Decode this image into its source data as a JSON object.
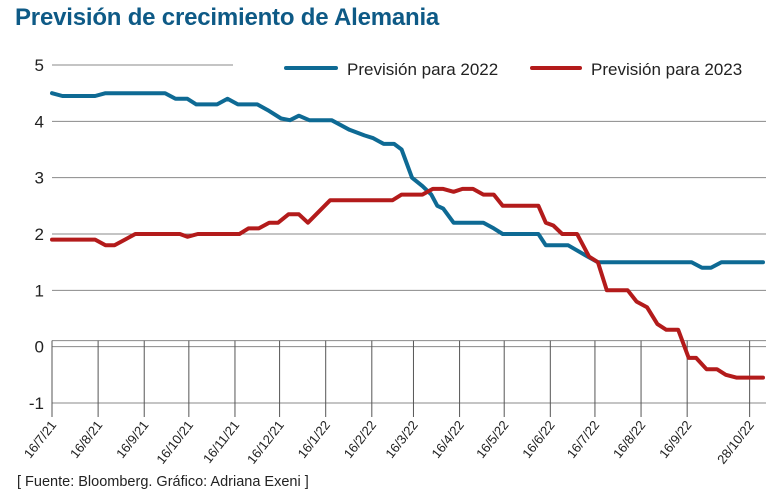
{
  "chart_data": {
    "type": "line",
    "title": "Previsión de crecimiento de Alemania",
    "xlabel": "",
    "ylabel": "",
    "ylim": [
      -1,
      5
    ],
    "yticks": [
      5,
      4,
      3,
      2,
      1,
      0,
      -1
    ],
    "grid": true,
    "legend_position": "top-right",
    "x_unit": "days since 16/7/21",
    "x_range": [
      0,
      480
    ],
    "xticks": [
      {
        "day": 0,
        "label": "16/7/21"
      },
      {
        "day": 31,
        "label": "16/8/21"
      },
      {
        "day": 62,
        "label": "16/9/21"
      },
      {
        "day": 92,
        "label": "16/10/21"
      },
      {
        "day": 123,
        "label": "16/11/21"
      },
      {
        "day": 153,
        "label": "16/12/21"
      },
      {
        "day": 184,
        "label": "16/1/22"
      },
      {
        "day": 215,
        "label": "16/2/22"
      },
      {
        "day": 243,
        "label": "16/3/22"
      },
      {
        "day": 274,
        "label": "16/4/22"
      },
      {
        "day": 304,
        "label": "16/5/22"
      },
      {
        "day": 335,
        "label": "16/6/22"
      },
      {
        "day": 365,
        "label": "16/7/22"
      },
      {
        "day": 396,
        "label": "16/8/22"
      },
      {
        "day": 427,
        "label": "16/9/22"
      },
      {
        "day": 469,
        "label": "28/10/22"
      }
    ],
    "series": [
      {
        "name": "Previsión para 2022",
        "color": "#0e6a94",
        "points": [
          [
            0,
            4.5
          ],
          [
            7,
            4.45
          ],
          [
            29,
            4.45
          ],
          [
            36,
            4.5
          ],
          [
            76,
            4.5
          ],
          [
            83,
            4.4
          ],
          [
            91,
            4.4
          ],
          [
            97,
            4.3
          ],
          [
            111,
            4.3
          ],
          [
            118,
            4.4
          ],
          [
            125,
            4.3
          ],
          [
            138,
            4.3
          ],
          [
            145,
            4.2
          ],
          [
            154,
            4.05
          ],
          [
            160,
            4.02
          ],
          [
            166,
            4.1
          ],
          [
            173,
            4.02
          ],
          [
            188,
            4.02
          ],
          [
            200,
            3.85
          ],
          [
            210,
            3.75
          ],
          [
            216,
            3.7
          ],
          [
            223,
            3.6
          ],
          [
            230,
            3.6
          ],
          [
            235,
            3.5
          ],
          [
            242,
            3.0
          ],
          [
            249,
            2.85
          ],
          [
            255,
            2.7
          ],
          [
            259,
            2.5
          ],
          [
            263,
            2.45
          ],
          [
            270,
            2.2
          ],
          [
            290,
            2.2
          ],
          [
            297,
            2.1
          ],
          [
            303,
            2.0
          ],
          [
            327,
            2.0
          ],
          [
            332,
            1.8
          ],
          [
            347,
            1.8
          ],
          [
            360,
            1.6
          ],
          [
            367,
            1.5
          ],
          [
            430,
            1.5
          ],
          [
            437,
            1.4
          ],
          [
            443,
            1.4
          ],
          [
            450,
            1.5
          ],
          [
            478,
            1.5
          ]
        ]
      },
      {
        "name": "Previsión para 2023",
        "color": "#b31b1b",
        "points": [
          [
            0,
            1.9
          ],
          [
            29,
            1.9
          ],
          [
            36,
            1.8
          ],
          [
            42,
            1.8
          ],
          [
            56,
            2.0
          ],
          [
            86,
            2.0
          ],
          [
            91,
            1.95
          ],
          [
            98,
            2.0
          ],
          [
            126,
            2.0
          ],
          [
            132,
            2.1
          ],
          [
            139,
            2.1
          ],
          [
            146,
            2.2
          ],
          [
            152,
            2.2
          ],
          [
            159,
            2.35
          ],
          [
            166,
            2.35
          ],
          [
            172,
            2.2
          ],
          [
            187,
            2.6
          ],
          [
            229,
            2.6
          ],
          [
            235,
            2.7
          ],
          [
            249,
            2.7
          ],
          [
            256,
            2.8
          ],
          [
            263,
            2.8
          ],
          [
            270,
            2.75
          ],
          [
            276,
            2.8
          ],
          [
            283,
            2.8
          ],
          [
            290,
            2.7
          ],
          [
            297,
            2.7
          ],
          [
            303,
            2.5
          ],
          [
            327,
            2.5
          ],
          [
            332,
            2.2
          ],
          [
            337,
            2.15
          ],
          [
            343,
            2.0
          ],
          [
            353,
            2.0
          ],
          [
            361,
            1.6
          ],
          [
            367,
            1.5
          ],
          [
            373,
            1.0
          ],
          [
            387,
            1.0
          ],
          [
            393,
            0.8
          ],
          [
            400,
            0.7
          ],
          [
            407,
            0.4
          ],
          [
            413,
            0.3
          ],
          [
            421,
            0.3
          ],
          [
            428,
            -0.2
          ],
          [
            433,
            -0.2
          ],
          [
            440,
            -0.4
          ],
          [
            447,
            -0.4
          ],
          [
            453,
            -0.5
          ],
          [
            460,
            -0.55
          ],
          [
            478,
            -0.55
          ]
        ]
      }
    ]
  },
  "title": "Previsión de crecimiento de Alemania",
  "legend": [
    {
      "label": "Previsión para 2022",
      "color": "#0e6a94"
    },
    {
      "label": "Previsión para 2023",
      "color": "#b31b1b"
    }
  ],
  "source": "[ Fuente: Bloomberg. Gráfico: Adriana Exeni ]"
}
